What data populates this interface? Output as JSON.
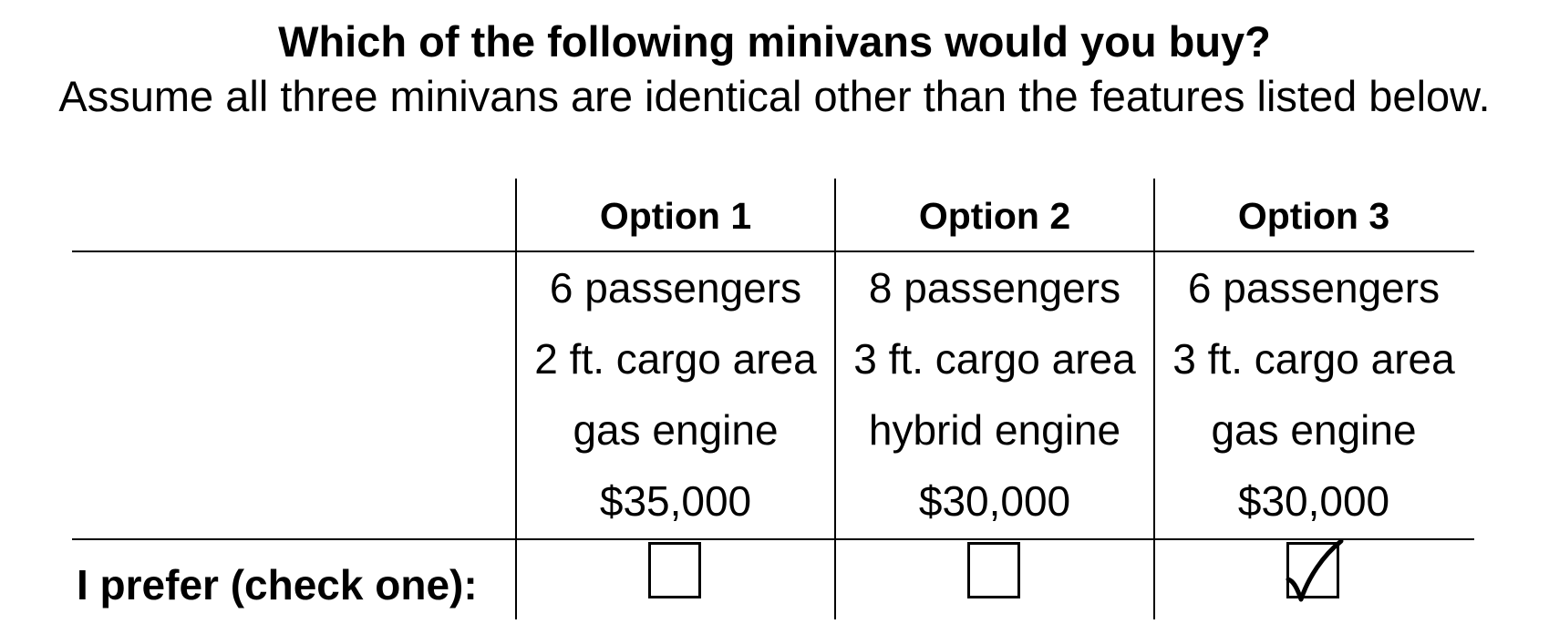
{
  "heading": {
    "title": "Which of the following minivans would you buy?",
    "subtitle": "Assume all three minivans are identical other than the features listed below."
  },
  "options": [
    {
      "header": "Option 1",
      "passengers": "6 passengers",
      "cargo": "2 ft. cargo area",
      "engine": "gas engine",
      "price": "$35,000",
      "checked": false
    },
    {
      "header": "Option 2",
      "passengers": "8 passengers",
      "cargo": "3 ft. cargo area",
      "engine": "hybrid engine",
      "price": "$30,000",
      "checked": false
    },
    {
      "header": "Option 3",
      "passengers": "6 passengers",
      "cargo": "3 ft. cargo area",
      "engine": "gas engine",
      "price": "$30,000",
      "checked": true
    }
  ],
  "preference_row": {
    "label": "I prefer (check one):"
  },
  "icons": {
    "checkbox": "checkbox-icon",
    "checkmark": "checkmark-icon"
  }
}
